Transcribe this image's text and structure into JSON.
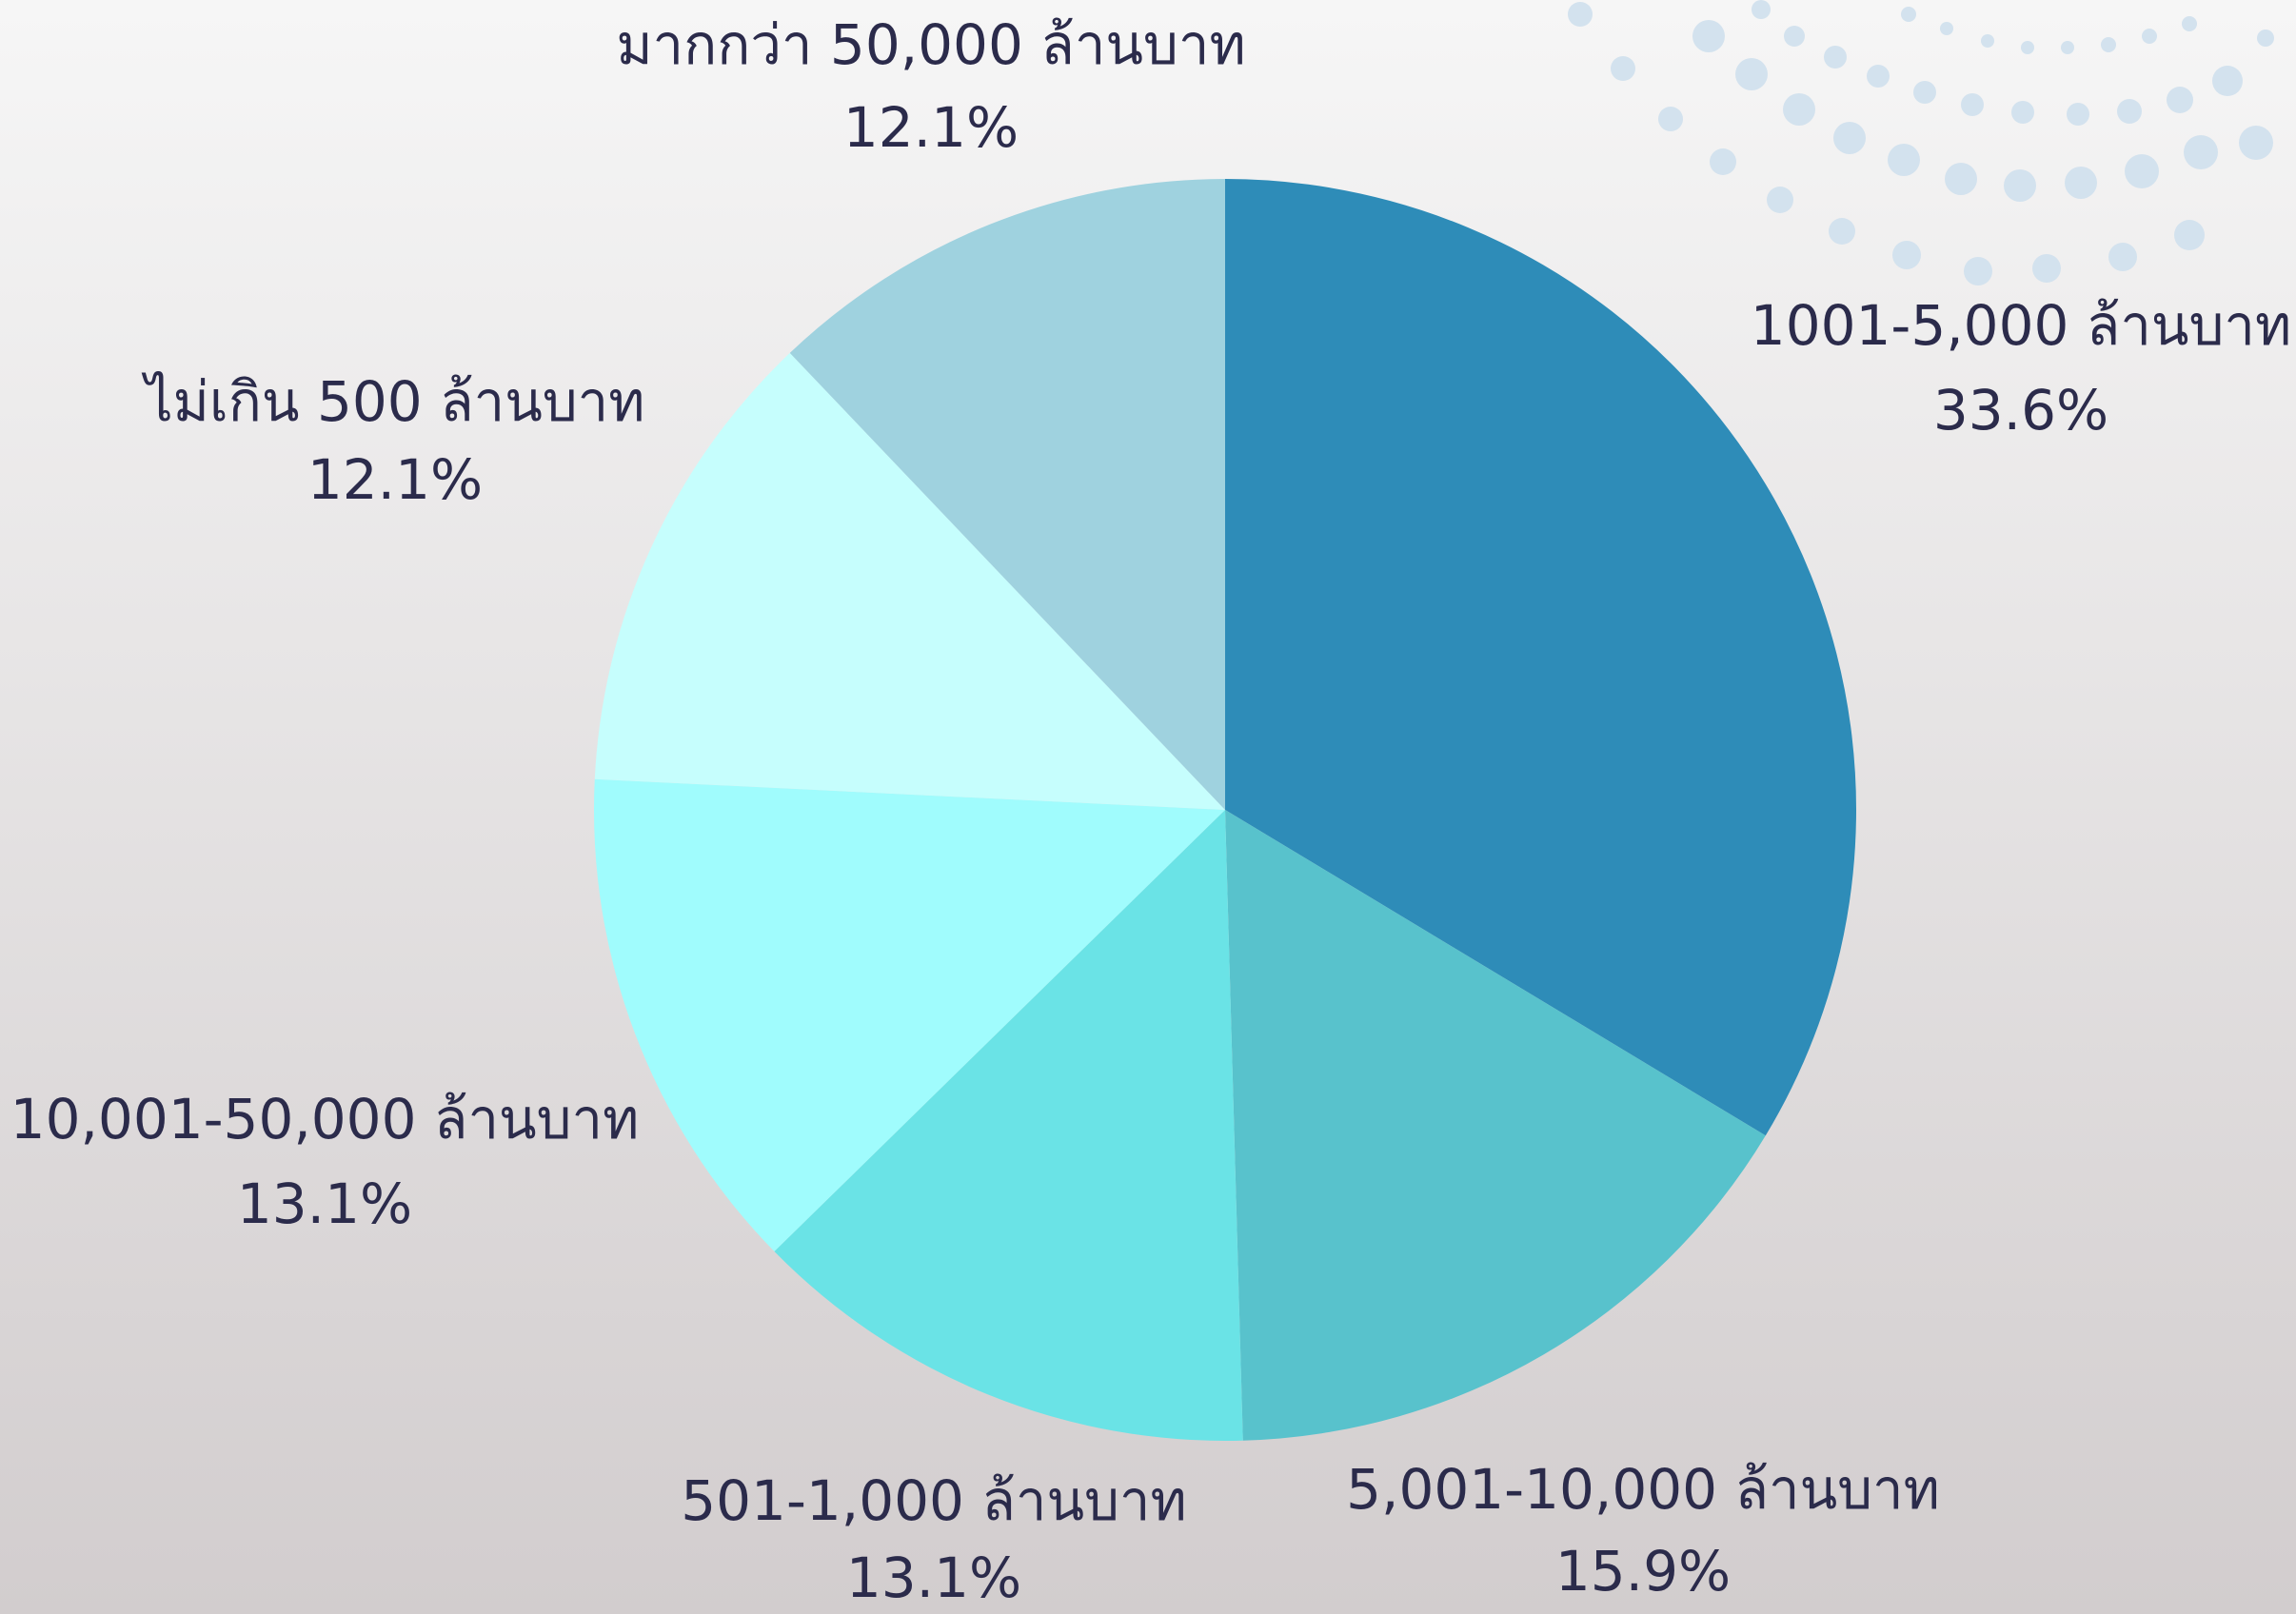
{
  "chart_data": {
    "type": "pie",
    "categories": [
      "1001-5,000 ล้านบาท",
      "5,001-10,000 ล้านบาท",
      "501-1,000 ล้านบาท",
      "10,001-50,000 ล้านบาท",
      "ไม่เกิน 500 ล้านบาท",
      "มากกว่า 50,000 ล้านบาท"
    ],
    "values": [
      33.6,
      15.9,
      13.1,
      13.1,
      12.1,
      12.1
    ],
    "value_labels": [
      "33.6%",
      "15.9%",
      "13.1%",
      "13.1%",
      "12.1%",
      "12.1%"
    ],
    "colors": [
      "#2e8cb8",
      "#58c2cc",
      "#6ae3e6",
      "#a0fcfd",
      "#c6fefd",
      "#9fd2df"
    ]
  }
}
